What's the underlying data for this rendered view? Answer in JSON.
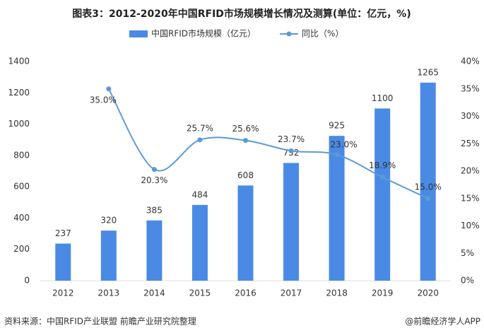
{
  "chart_data": {
    "type": "bar",
    "title": "图表3：2012-2020年中国RFID市场规模增长情况及测算(单位：亿元，%)",
    "categories": [
      "2012",
      "2013",
      "2014",
      "2015",
      "2016",
      "2017",
      "2018",
      "2019",
      "2020"
    ],
    "series": [
      {
        "name": "中国RFID市场规模（亿元）",
        "type": "bar",
        "color": "#4a8ae4",
        "values": [
          237,
          320,
          385,
          484,
          608,
          752,
          925,
          1100,
          1265
        ]
      },
      {
        "name": "同比（%）",
        "type": "line",
        "axis": "y2",
        "color": "#5b9bd5",
        "values": [
          null,
          35.0,
          20.3,
          25.7,
          25.6,
          23.7,
          23.0,
          18.9,
          15.0
        ],
        "value_labels": [
          null,
          "35.0%",
          "20.3%",
          "25.7%",
          "25.6%",
          "23.7%",
          "23.0%",
          "18.9%",
          "15.0%"
        ]
      }
    ],
    "ylim": [
      0,
      1400
    ],
    "yticks": [
      0,
      200,
      400,
      600,
      800,
      1000,
      1200,
      1400
    ],
    "y2lim": [
      0,
      40
    ],
    "y2ticks": [
      {
        "value": 0,
        "label": "0%"
      },
      {
        "value": 5,
        "label": "5%"
      },
      {
        "value": 10,
        "label": "10%"
      },
      {
        "value": 15,
        "label": "15%"
      },
      {
        "value": 20,
        "label": "20%"
      },
      {
        "value": 25,
        "label": "25%"
      },
      {
        "value": 30,
        "label": "30%"
      },
      {
        "value": 35,
        "label": "35%"
      },
      {
        "value": 40,
        "label": "40%"
      }
    ],
    "grid": false,
    "source": "资料来源：中国RFID产业联盟 前瞻产业研究院整理",
    "credit": "@前瞻经济学人APP"
  }
}
